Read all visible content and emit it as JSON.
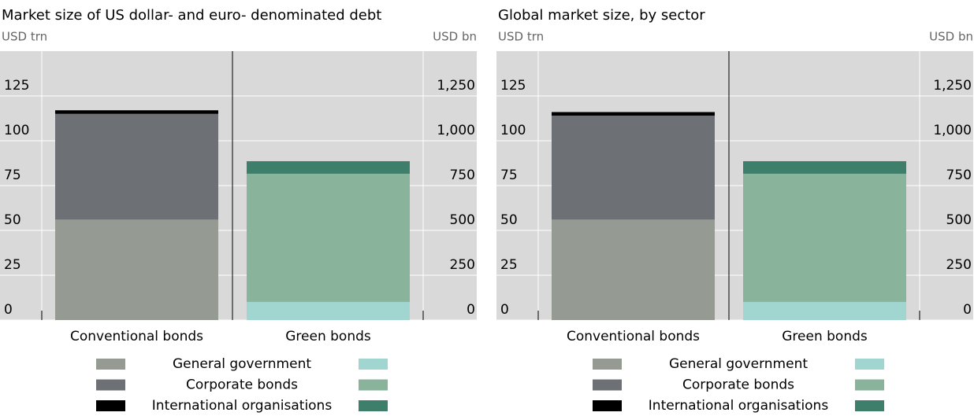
{
  "chart_data": [
    {
      "type": "stacked_bar",
      "title": "Market size of US dollar- and euro- denominated debt",
      "y_label": "USD trn",
      "y2_label": "USD bn",
      "categories": [
        "Conventional bonds",
        "Green bonds"
      ],
      "category_axes": [
        "y",
        "y2"
      ],
      "series": [
        {
          "name": "General government",
          "colors": [
            "#959a92",
            "#a1d5cf"
          ],
          "values": [
            56,
            101
          ]
        },
        {
          "name": "Corporate bonds",
          "colors": [
            "#6d7075",
            "#8ab39c"
          ],
          "values": [
            59,
            715
          ]
        },
        {
          "name": "International organisations",
          "colors": [
            "#000000",
            "#3e7f6b"
          ],
          "values": [
            2,
            70
          ]
        }
      ],
      "ylim": [
        0,
        150
      ],
      "yticks": [
        0,
        25,
        50,
        75,
        100,
        125
      ],
      "y2lim": [
        0,
        1500
      ],
      "y2ticks": [
        0,
        250,
        500,
        750,
        {
          "value": 1000,
          "label": "1,000"
        },
        {
          "value": 1250,
          "label": "1,250"
        }
      ],
      "grid": true
    },
    {
      "type": "stacked_bar",
      "title": "Global market size, by sector",
      "y_label": "USD trn",
      "y2_label": "USD bn",
      "categories": [
        "Conventional bonds",
        "Green bonds"
      ],
      "category_axes": [
        "y",
        "y2"
      ],
      "series": [
        {
          "name": "General government",
          "colors": [
            "#959a92",
            "#a1d5cf"
          ],
          "values": [
            56,
            101
          ]
        },
        {
          "name": "Corporate bonds",
          "colors": [
            "#6d7075",
            "#8ab39c"
          ],
          "values": [
            58,
            715
          ]
        },
        {
          "name": "International organisations",
          "colors": [
            "#000000",
            "#3e7f6b"
          ],
          "values": [
            2,
            70
          ]
        }
      ],
      "ylim": [
        0,
        150
      ],
      "yticks": [
        0,
        25,
        50,
        75,
        100,
        125
      ],
      "y2lim": [
        0,
        1500
      ],
      "y2ticks": [
        0,
        250,
        500,
        750,
        {
          "value": 1000,
          "label": "1,000"
        },
        {
          "value": 1250,
          "label": "1,250"
        }
      ],
      "grid": true
    }
  ]
}
